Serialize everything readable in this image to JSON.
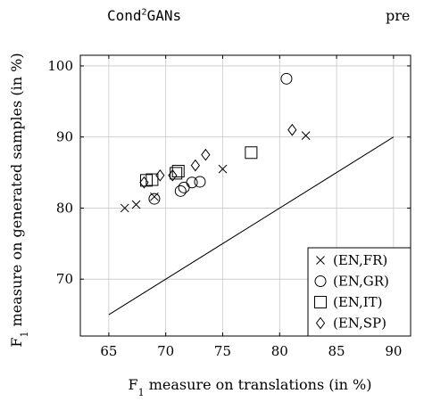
{
  "header": {
    "left_text": "Cond",
    "left_superscript": "2",
    "left_suffix": "GANs",
    "right_text": "pre"
  },
  "chart_data": {
    "type": "scatter",
    "xlabel_base": "F",
    "xlabel_sub": "1",
    "xlabel_rest": " measure on translations (in %)",
    "ylabel_base": "F",
    "ylabel_sub": "1",
    "ylabel_rest": " measure on generated samples (in %)",
    "xlim": [
      62.5,
      91.5
    ],
    "ylim": [
      62,
      101.5
    ],
    "xticks": [
      65,
      70,
      75,
      80,
      85,
      90
    ],
    "yticks": [
      70,
      80,
      90,
      100
    ],
    "grid": true,
    "legend_position": "bottom-right",
    "reference_line": {
      "x": [
        65,
        90
      ],
      "y": [
        65,
        90
      ]
    },
    "series": [
      {
        "name": "(EN,FR)",
        "marker": "cross",
        "points": [
          {
            "x": 66.4,
            "y": 80.0
          },
          {
            "x": 67.4,
            "y": 80.5
          },
          {
            "x": 69.0,
            "y": 81.6
          },
          {
            "x": 75.0,
            "y": 85.5
          },
          {
            "x": 82.3,
            "y": 90.2
          }
        ]
      },
      {
        "name": "(EN,GR)",
        "marker": "circle",
        "points": [
          {
            "x": 69.0,
            "y": 81.3
          },
          {
            "x": 71.3,
            "y": 82.4
          },
          {
            "x": 71.6,
            "y": 82.9
          },
          {
            "x": 72.3,
            "y": 83.6
          },
          {
            "x": 73.0,
            "y": 83.7
          },
          {
            "x": 80.6,
            "y": 98.2
          }
        ]
      },
      {
        "name": "(EN,IT)",
        "marker": "square",
        "points": [
          {
            "x": 68.3,
            "y": 83.9
          },
          {
            "x": 68.8,
            "y": 84.0
          },
          {
            "x": 70.9,
            "y": 84.9
          },
          {
            "x": 71.1,
            "y": 85.2
          },
          {
            "x": 77.5,
            "y": 87.8
          }
        ]
      },
      {
        "name": "(EN,SP)",
        "marker": "diamond",
        "points": [
          {
            "x": 68.1,
            "y": 83.6
          },
          {
            "x": 69.5,
            "y": 84.6
          },
          {
            "x": 70.6,
            "y": 84.6
          },
          {
            "x": 72.6,
            "y": 86.0
          },
          {
            "x": 73.5,
            "y": 87.5
          },
          {
            "x": 81.1,
            "y": 91.0
          }
        ]
      }
    ]
  }
}
